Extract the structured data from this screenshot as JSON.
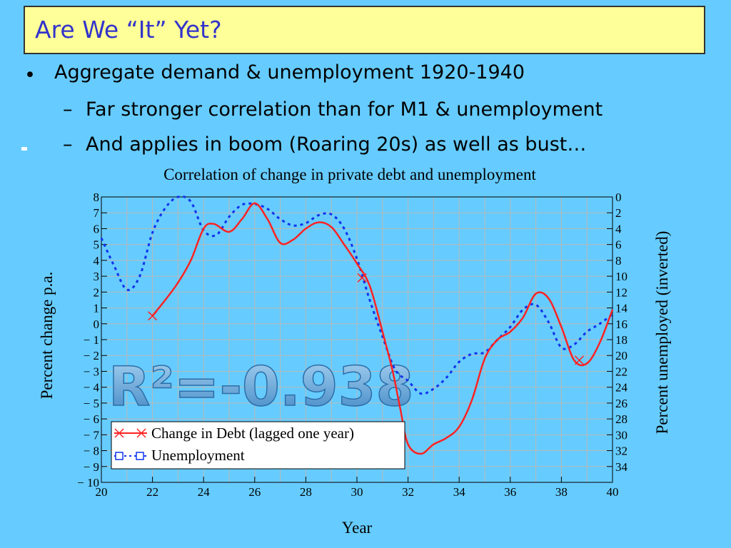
{
  "slide": {
    "title": "Are We “It” Yet?",
    "bullets": [
      {
        "marker": "•",
        "text": "Aggregate demand & unemployment 1920-1940"
      },
      {
        "marker": "–",
        "text": "Far stronger correlation than for M1 & unemployment"
      },
      {
        "marker": "–",
        "text": "And applies in boom (Roaring 20s) as well as bust…"
      }
    ],
    "annotation": "R²=-0.938"
  },
  "colors": {
    "background": "#66ccff",
    "title_fill": "#ffff99",
    "title_text": "#3333cc",
    "debt_series": "#ff2222",
    "unemployment_series": "#1133ee",
    "annotation": "#5aa0d8"
  },
  "chart_data": {
    "type": "line",
    "title": "Correlation of change in private debt and unemployment",
    "xlabel": "Year",
    "ylabel": "Percent change p.a.",
    "y2label": "Percent unemployed (inverted)",
    "xlim": [
      20,
      40
    ],
    "ylim": [
      -10,
      8
    ],
    "y2lim": [
      0,
      36
    ],
    "y2_inverted": true,
    "grid": true,
    "legend_position": "bottom-left",
    "x_ticks": [
      "20",
      "22",
      "24",
      "26",
      "28",
      "30",
      "32",
      "34",
      "36",
      "38",
      "40"
    ],
    "y_ticks": [
      "8",
      "7",
      "6",
      "5",
      "4",
      "3",
      "2",
      "1",
      "0",
      "− 1",
      "− 2",
      "− 3",
      "− 4",
      "− 5",
      "− 6",
      "− 7",
      "− 8",
      "− 9",
      "− 10"
    ],
    "y2_ticks": [
      "0",
      "2",
      "4",
      "6",
      "8",
      "10",
      "12",
      "14",
      "16",
      "18",
      "20",
      "22",
      "24",
      "26",
      "28",
      "30",
      "32",
      "34"
    ],
    "series": [
      {
        "name": "Change in Debt (lagged one year)",
        "axis": "left",
        "style": "solid",
        "markers": [
          [
            22.0,
            0.5
          ],
          [
            30.2,
            2.9
          ],
          [
            38.7,
            -2.3
          ]
        ],
        "points": [
          [
            22.0,
            0.5
          ],
          [
            22.5,
            1.5
          ],
          [
            23.0,
            2.6
          ],
          [
            23.5,
            4.0
          ],
          [
            24.0,
            6.0
          ],
          [
            24.4,
            6.3
          ],
          [
            25.0,
            5.8
          ],
          [
            25.5,
            6.6
          ],
          [
            26.0,
            7.6
          ],
          [
            26.5,
            6.6
          ],
          [
            27.0,
            5.1
          ],
          [
            27.5,
            5.3
          ],
          [
            28.0,
            6.0
          ],
          [
            28.5,
            6.4
          ],
          [
            29.0,
            6.1
          ],
          [
            29.5,
            5.0
          ],
          [
            30.0,
            3.8
          ],
          [
            30.5,
            2.4
          ],
          [
            31.0,
            -0.5
          ],
          [
            31.4,
            -3.0
          ],
          [
            31.7,
            -5.4
          ],
          [
            32.0,
            -7.6
          ],
          [
            32.5,
            -8.2
          ],
          [
            33.0,
            -7.6
          ],
          [
            33.5,
            -7.2
          ],
          [
            34.0,
            -6.5
          ],
          [
            34.5,
            -4.8
          ],
          [
            35.0,
            -2.2
          ],
          [
            35.5,
            -1.0
          ],
          [
            36.0,
            -0.5
          ],
          [
            36.5,
            0.4
          ],
          [
            37.0,
            1.9
          ],
          [
            37.5,
            1.6
          ],
          [
            38.0,
            -0.2
          ],
          [
            38.5,
            -2.3
          ],
          [
            39.0,
            -2.5
          ],
          [
            39.5,
            -1.2
          ],
          [
            40.0,
            0.9
          ]
        ]
      },
      {
        "name": "Unemployment",
        "axis": "right",
        "style": "dotted",
        "points": [
          [
            20.0,
            5.2
          ],
          [
            20.5,
            8.7
          ],
          [
            21.0,
            11.7
          ],
          [
            21.5,
            10.0
          ],
          [
            22.0,
            4.5
          ],
          [
            22.5,
            1.4
          ],
          [
            23.0,
            0.0
          ],
          [
            23.5,
            0.6
          ],
          [
            24.0,
            4.2
          ],
          [
            24.5,
            4.8
          ],
          [
            25.0,
            2.5
          ],
          [
            25.5,
            1.0
          ],
          [
            26.0,
            0.9
          ],
          [
            26.5,
            1.5
          ],
          [
            27.0,
            2.8
          ],
          [
            27.5,
            3.6
          ],
          [
            28.0,
            3.3
          ],
          [
            28.5,
            2.3
          ],
          [
            29.0,
            2.2
          ],
          [
            29.5,
            4.0
          ],
          [
            30.0,
            7.8
          ],
          [
            30.5,
            13.0
          ],
          [
            31.0,
            17.6
          ],
          [
            31.5,
            21.8
          ],
          [
            32.0,
            23.2
          ],
          [
            32.5,
            24.8
          ],
          [
            33.0,
            24.2
          ],
          [
            33.5,
            22.8
          ],
          [
            34.0,
            20.8
          ],
          [
            34.5,
            19.8
          ],
          [
            35.0,
            19.6
          ],
          [
            35.5,
            18.0
          ],
          [
            36.0,
            16.4
          ],
          [
            36.5,
            14.2
          ],
          [
            37.0,
            13.6
          ],
          [
            37.5,
            15.8
          ],
          [
            38.0,
            19.0
          ],
          [
            38.5,
            18.6
          ],
          [
            39.0,
            17.0
          ],
          [
            39.5,
            16.0
          ],
          [
            40.0,
            14.8
          ]
        ]
      }
    ]
  }
}
